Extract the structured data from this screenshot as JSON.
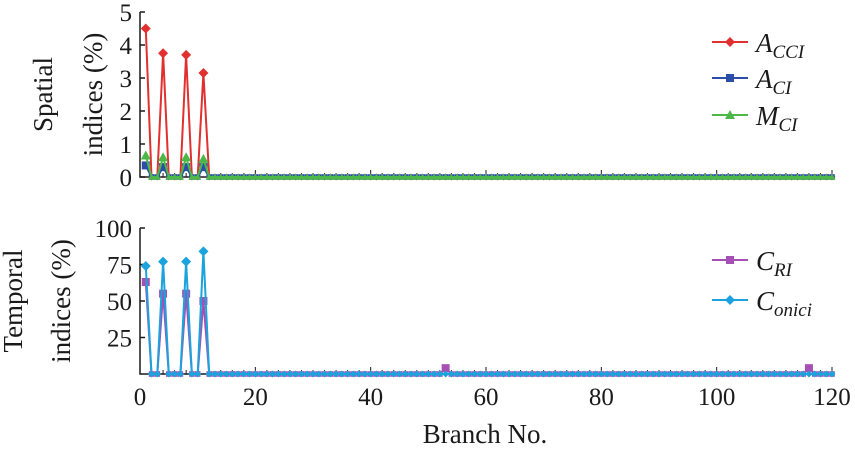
{
  "chart_data": [
    {
      "type": "line",
      "ylabel": "Spatial indices (%)",
      "xlim": [
        0,
        120
      ],
      "ylim": [
        0,
        5
      ],
      "yticks": [
        0,
        1,
        2,
        3,
        4,
        5
      ],
      "grid": false,
      "legend_position": "top-right",
      "series": [
        {
          "name": "A_CCI",
          "name_base": "A",
          "name_sub": "CCI",
          "color": "#e03030",
          "marker": "diamond",
          "x": [
            1,
            2,
            3,
            4,
            5,
            6,
            7,
            8,
            9,
            10,
            11,
            12,
            120
          ],
          "values": [
            4.5,
            0,
            0,
            3.75,
            0,
            0,
            0,
            3.7,
            0,
            0,
            3.15,
            0,
            0
          ]
        },
        {
          "name": "A_CI",
          "name_base": "A",
          "name_sub": "CI",
          "color": "#2b4fa8",
          "marker": "square",
          "x": [
            1,
            2,
            3,
            4,
            5,
            6,
            7,
            8,
            9,
            10,
            11,
            12,
            120
          ],
          "values": [
            0.35,
            0,
            0,
            0.3,
            0,
            0,
            0,
            0.3,
            0,
            0,
            0.3,
            0,
            0
          ]
        },
        {
          "name": "M_CI",
          "name_base": "M",
          "name_sub": "CI",
          "color": "#4cb848",
          "marker": "triangle",
          "x": [
            1,
            2,
            3,
            4,
            5,
            6,
            7,
            8,
            9,
            10,
            11,
            12,
            120
          ],
          "values": [
            0.65,
            0,
            0,
            0.6,
            0,
            0,
            0,
            0.6,
            0,
            0,
            0.55,
            0,
            0
          ]
        }
      ]
    },
    {
      "type": "line",
      "ylabel": "Temporal indices (%)",
      "xlabel": "Branch No.",
      "xlim": [
        0,
        120
      ],
      "ylim": [
        0,
        100
      ],
      "xticks": [
        0,
        20,
        40,
        60,
        80,
        100,
        120
      ],
      "yticks": [
        25,
        50,
        75,
        100
      ],
      "grid": false,
      "legend_position": "right",
      "series": [
        {
          "name": "C_RI",
          "name_base": "C",
          "name_sub": "RI",
          "color": "#a64fb4",
          "marker": "square",
          "x": [
            1,
            2,
            3,
            4,
            5,
            6,
            7,
            8,
            9,
            10,
            11,
            12,
            53,
            116,
            120
          ],
          "values": [
            63,
            0,
            0,
            55,
            0,
            0,
            0,
            55,
            0,
            0,
            50,
            0,
            4,
            4,
            0
          ]
        },
        {
          "name": "C_onici",
          "name_base": "C",
          "name_sub": "onici",
          "color": "#1aa3dc",
          "marker": "diamond",
          "x": [
            1,
            2,
            3,
            4,
            5,
            6,
            7,
            8,
            9,
            10,
            11,
            12,
            120
          ],
          "values": [
            74,
            0,
            0,
            77,
            0,
            0,
            0,
            77,
            0,
            0,
            84,
            0,
            0
          ]
        }
      ]
    }
  ]
}
